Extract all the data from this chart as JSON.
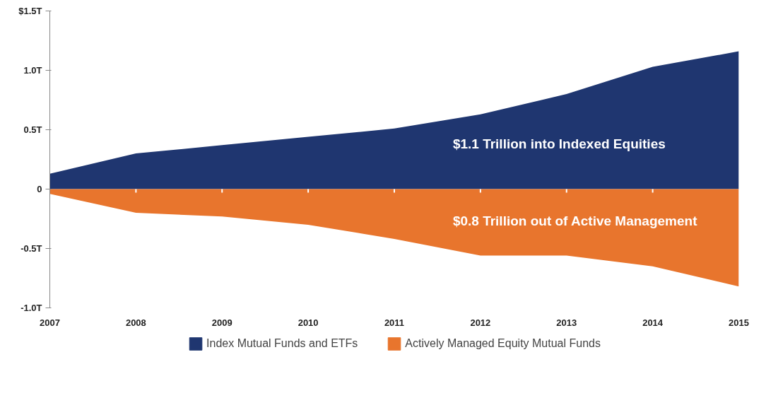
{
  "chart_data": {
    "type": "area",
    "x": [
      2007,
      2008,
      2009,
      2010,
      2011,
      2012,
      2013,
      2014,
      2015
    ],
    "series": [
      {
        "name": "Index Mutual Funds and ETFs",
        "color": "#1f3670",
        "values": [
          0.13,
          0.3,
          0.37,
          0.44,
          0.51,
          0.63,
          0.8,
          1.03,
          1.16
        ]
      },
      {
        "name": "Actively Managed Equity Mutual Funds",
        "color": "#e8752d",
        "values": [
          -0.04,
          -0.2,
          -0.23,
          -0.3,
          -0.42,
          -0.56,
          -0.56,
          -0.65,
          -0.82
        ]
      }
    ],
    "annotations": [
      "$1.1 Trillion into Indexed Equities",
      "$0.8 Trillion out of Active Management"
    ],
    "xlim": [
      2007,
      2015
    ],
    "xticks": [
      2007,
      2008,
      2009,
      2010,
      2011,
      2012,
      2013,
      2014,
      2015
    ],
    "ylim": [
      -1.0,
      1.5
    ],
    "yticks": [
      {
        "value": -1.0,
        "label": "-1.0T"
      },
      {
        "value": -0.5,
        "label": "-0.5T"
      },
      0,
      {
        "value": 0.5,
        "label": "0.5T"
      },
      {
        "value": 1.0,
        "label": "1.0T"
      },
      {
        "value": 1.5,
        "label": "$1.5T"
      }
    ],
    "grid": false,
    "legend": "bottom"
  }
}
